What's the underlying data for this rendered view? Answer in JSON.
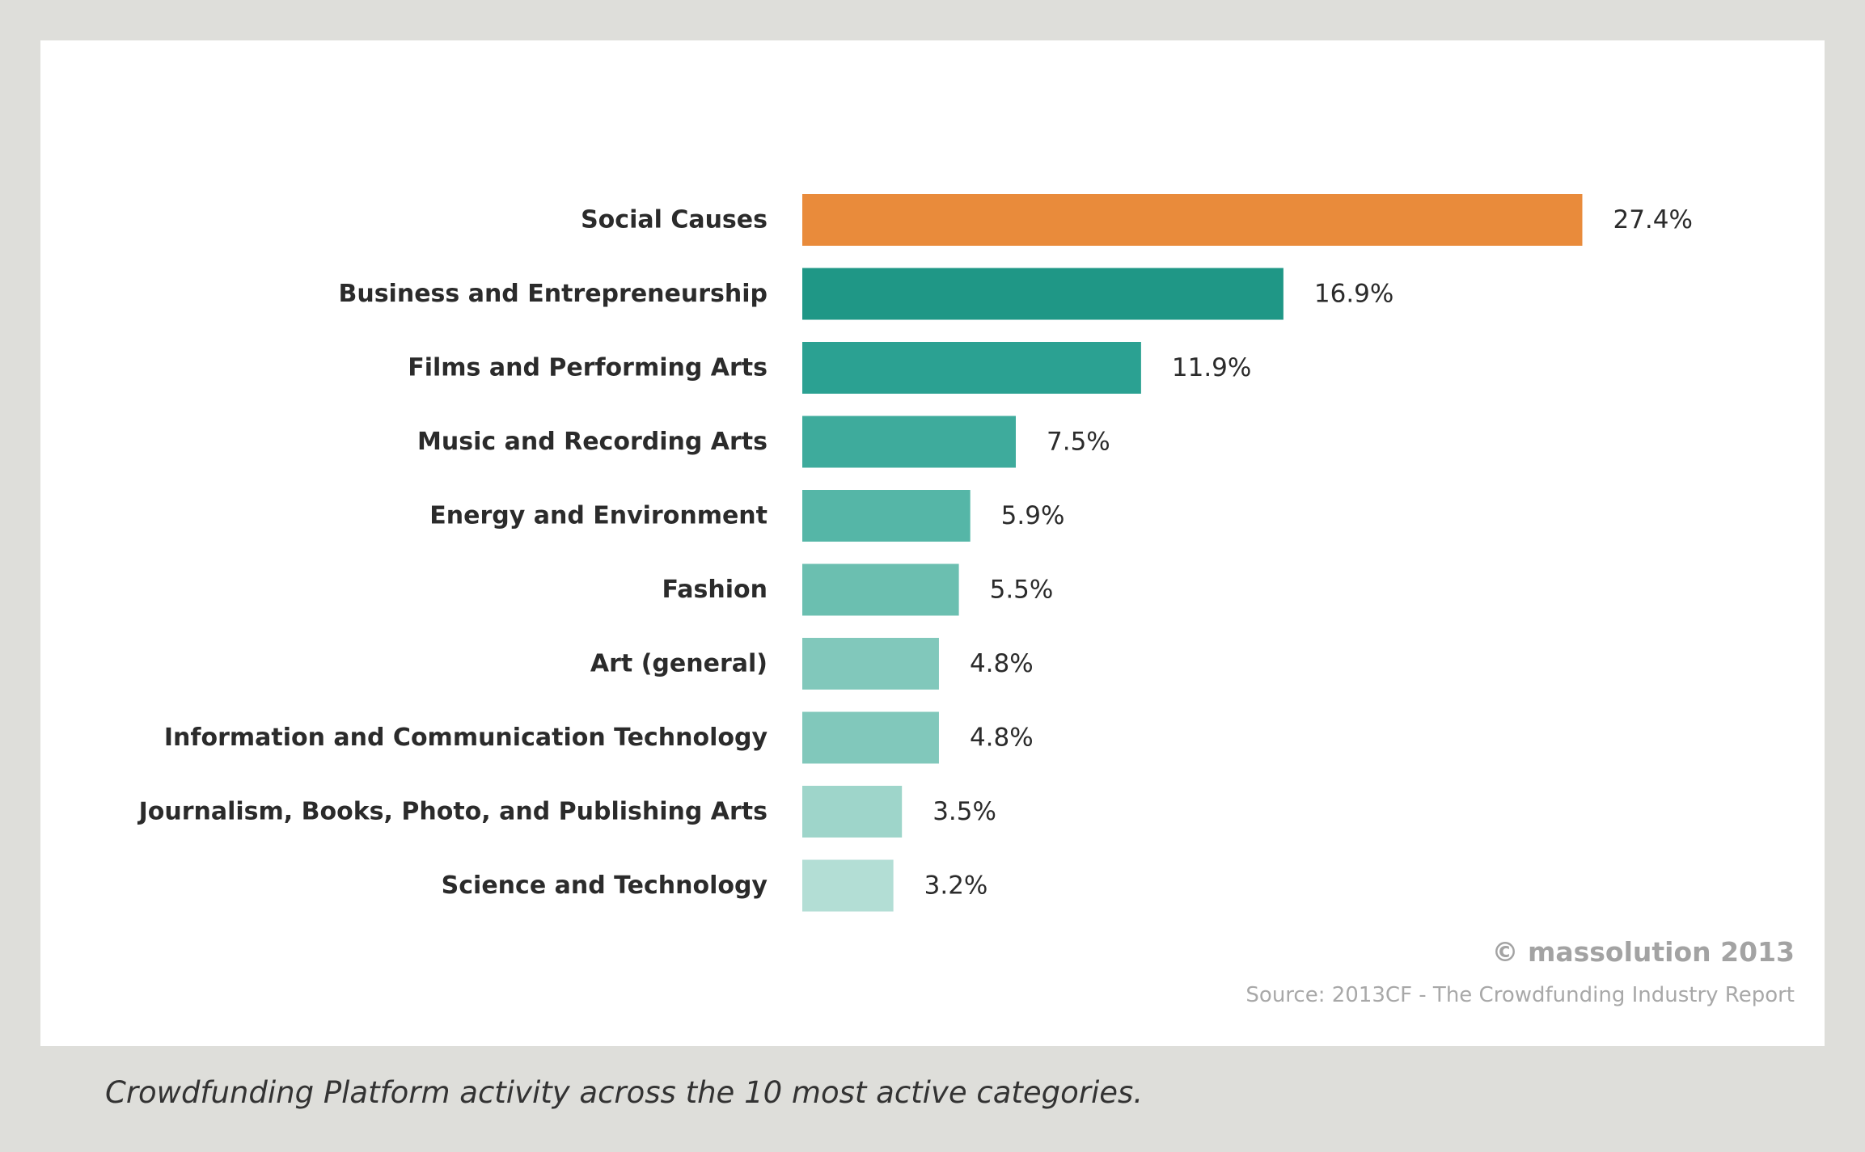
{
  "chart_data": {
    "type": "bar",
    "orientation": "horizontal",
    "categories": [
      "Social Causes",
      "Business and Entrepreneurship",
      "Films and Performing Arts",
      "Music and Recording Arts",
      "Energy and Environment",
      "Fashion",
      "Art (general)",
      "Information and Communication Technology",
      "Journalism, Books, Photo, and Publishing Arts",
      "Science and Technology"
    ],
    "values": [
      27.4,
      16.9,
      11.9,
      7.5,
      5.9,
      5.5,
      4.8,
      4.8,
      3.5,
      3.2
    ],
    "data_labels": [
      "27.4%",
      "16.9%",
      "11.9%",
      "7.5%",
      "5.9%",
      "5.5%",
      "4.8%",
      "4.8%",
      "3.5%",
      "3.2%"
    ],
    "colors": [
      "#e98b3b",
      "#1f9786",
      "#2ba192",
      "#3eab9c",
      "#55b6a7",
      "#6bbfb0",
      "#81c8bb",
      "#81c8bb",
      "#9ed5ca",
      "#b3ded5"
    ],
    "title": "",
    "xlabel": "",
    "ylabel": "",
    "grid": false,
    "legend": "none"
  },
  "copyright": "© massolution 2013",
  "source": "Source: 2013CF - The Crowdfunding Industry Report",
  "caption": "Crowdfunding Platform activity across the 10 most active categories."
}
